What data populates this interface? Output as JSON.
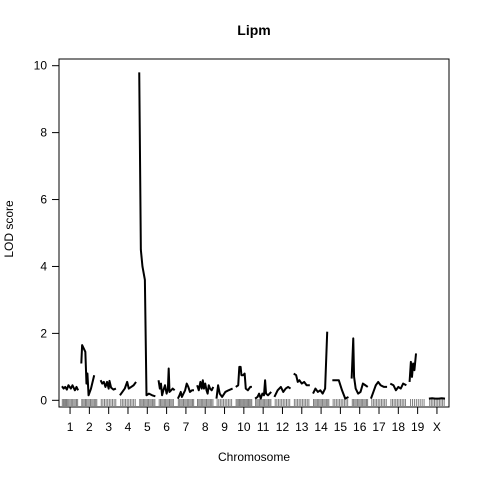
{
  "chart_data": {
    "type": "line",
    "title": "Lipm",
    "xlabel": "Chromosome",
    "ylabel": "LOD score",
    "ylim": [
      -0.2,
      10.2
    ],
    "yticks": [
      0,
      2,
      4,
      6,
      8,
      10
    ],
    "grid": false,
    "legend": "none",
    "line_color": "#000000",
    "rug_color": "#7f7f7f",
    "chromosomes": [
      {
        "label": "1",
        "xrange": [
          0,
          100
        ],
        "points": [
          [
            0,
            0.42
          ],
          [
            10,
            0.35
          ],
          [
            20,
            0.4
          ],
          [
            30,
            0.32
          ],
          [
            40,
            0.45
          ],
          [
            55,
            0.35
          ],
          [
            65,
            0.45
          ],
          [
            80,
            0.3
          ],
          [
            90,
            0.4
          ],
          [
            100,
            0.3
          ]
        ],
        "markers": [
          2,
          9,
          15,
          22,
          28,
          35,
          42,
          50,
          58,
          66,
          74,
          82,
          90,
          97
        ]
      },
      {
        "label": "2",
        "xrange": [
          0,
          100
        ],
        "points": [
          [
            0,
            1.1
          ],
          [
            5,
            1.65
          ],
          [
            15,
            1.55
          ],
          [
            25,
            1.45
          ],
          [
            32,
            0.5
          ],
          [
            38,
            0.8
          ],
          [
            45,
            0.15
          ],
          [
            60,
            0.35
          ],
          [
            80,
            0.75
          ]
        ],
        "markers": [
          3,
          10,
          18,
          26,
          33,
          41,
          49,
          57,
          65,
          73,
          81,
          89,
          96
        ]
      },
      {
        "label": "3",
        "xrange": [
          0,
          100
        ],
        "points": [
          [
            0,
            0.6
          ],
          [
            10,
            0.5
          ],
          [
            20,
            0.55
          ],
          [
            30,
            0.4
          ],
          [
            40,
            0.55
          ],
          [
            50,
            0.35
          ],
          [
            55,
            0.58
          ],
          [
            65,
            0.38
          ],
          [
            80,
            0.32
          ],
          [
            95,
            0.35
          ]
        ],
        "markers": [
          4,
          14,
          24,
          34,
          44,
          54,
          64,
          74,
          84,
          94
        ]
      },
      {
        "label": "4",
        "xrange": [
          0,
          100
        ],
        "points": [
          [
            0,
            0.15
          ],
          [
            15,
            0.25
          ],
          [
            30,
            0.35
          ],
          [
            45,
            0.55
          ],
          [
            55,
            0.35
          ],
          [
            70,
            0.4
          ],
          [
            85,
            0.45
          ],
          [
            100,
            0.55
          ]
        ],
        "markers": [
          5,
          15,
          25,
          35,
          45,
          55,
          65,
          75,
          85,
          95
        ]
      },
      {
        "label": "5",
        "xrange": [
          0,
          100
        ],
        "points": [
          [
            0,
            9.8
          ],
          [
            10,
            4.5
          ],
          [
            20,
            4.0
          ],
          [
            35,
            3.6
          ],
          [
            45,
            0.15
          ],
          [
            60,
            0.2
          ],
          [
            80,
            0.15
          ],
          [
            100,
            0.12
          ]
        ],
        "markers": [
          3,
          10,
          18,
          26,
          34,
          42,
          50,
          58,
          66,
          74,
          82,
          90,
          97
        ]
      },
      {
        "label": "6",
        "xrange": [
          0,
          100
        ],
        "points": [
          [
            0,
            0.6
          ],
          [
            8,
            0.35
          ],
          [
            15,
            0.5
          ],
          [
            22,
            0.15
          ],
          [
            30,
            0.3
          ],
          [
            40,
            0.45
          ],
          [
            50,
            0.2
          ],
          [
            58,
            0.35
          ],
          [
            63,
            0.95
          ],
          [
            68,
            0.25
          ],
          [
            78,
            0.3
          ],
          [
            88,
            0.35
          ],
          [
            100,
            0.3
          ]
        ],
        "markers": [
          4,
          12,
          20,
          28,
          36,
          44,
          52,
          60,
          68,
          76,
          84,
          92
        ]
      },
      {
        "label": "7",
        "xrange": [
          0,
          100
        ],
        "points": [
          [
            0,
            0.05
          ],
          [
            10,
            0.15
          ],
          [
            18,
            0.25
          ],
          [
            25,
            0.1
          ],
          [
            35,
            0.2
          ],
          [
            45,
            0.3
          ],
          [
            55,
            0.5
          ],
          [
            65,
            0.4
          ],
          [
            75,
            0.25
          ],
          [
            88,
            0.3
          ],
          [
            100,
            0.3
          ]
        ],
        "markers": [
          3,
          11,
          19,
          27,
          35,
          43,
          51,
          59,
          67,
          75,
          83,
          91,
          98
        ]
      },
      {
        "label": "8",
        "xrange": [
          0,
          100
        ],
        "points": [
          [
            0,
            0.45
          ],
          [
            10,
            0.3
          ],
          [
            20,
            0.55
          ],
          [
            28,
            0.35
          ],
          [
            35,
            0.6
          ],
          [
            42,
            0.35
          ],
          [
            50,
            0.5
          ],
          [
            58,
            0.3
          ],
          [
            65,
            0.2
          ],
          [
            72,
            0.45
          ],
          [
            80,
            0.35
          ],
          [
            90,
            0.3
          ],
          [
            100,
            0.4
          ]
        ],
        "markers": [
          2,
          10,
          18,
          26,
          34,
          42,
          50,
          58,
          66,
          74,
          82,
          90,
          98
        ]
      },
      {
        "label": "9",
        "xrange": [
          0,
          100
        ],
        "points": [
          [
            0,
            0.05
          ],
          [
            10,
            0.45
          ],
          [
            20,
            0.2
          ],
          [
            35,
            0.1
          ],
          [
            55,
            0.25
          ],
          [
            75,
            0.3
          ],
          [
            100,
            0.35
          ]
        ],
        "markers": [
          4,
          14,
          24,
          34,
          44,
          54,
          64,
          74,
          84,
          94
        ]
      },
      {
        "label": "10",
        "xrange": [
          0,
          100
        ],
        "points": [
          [
            0,
            0.4
          ],
          [
            15,
            0.45
          ],
          [
            22,
            1.0
          ],
          [
            30,
            1.0
          ],
          [
            35,
            0.75
          ],
          [
            45,
            0.75
          ],
          [
            55,
            0.8
          ],
          [
            62,
            0.35
          ],
          [
            75,
            0.3
          ],
          [
            90,
            0.4
          ],
          [
            100,
            0.4
          ]
        ],
        "markers": [
          2,
          9,
          16,
          23,
          30,
          37,
          44,
          51,
          58,
          65,
          72,
          79,
          86,
          93,
          99
        ]
      },
      {
        "label": "11",
        "xrange": [
          0,
          100
        ],
        "points": [
          [
            0,
            0.05
          ],
          [
            15,
            0.1
          ],
          [
            25,
            0.2
          ],
          [
            35,
            0.05
          ],
          [
            45,
            0.2
          ],
          [
            55,
            0.15
          ],
          [
            62,
            0.6
          ],
          [
            68,
            0.2
          ],
          [
            80,
            0.15
          ],
          [
            100,
            0.25
          ]
        ],
        "markers": [
          3,
          11,
          19,
          27,
          35,
          43,
          51,
          59,
          67,
          75,
          83,
          91,
          98
        ]
      },
      {
        "label": "12",
        "xrange": [
          0,
          100
        ],
        "points": [
          [
            0,
            0.1
          ],
          [
            20,
            0.3
          ],
          [
            40,
            0.4
          ],
          [
            55,
            0.25
          ],
          [
            70,
            0.35
          ],
          [
            85,
            0.4
          ],
          [
            100,
            0.35
          ]
        ],
        "markers": [
          5,
          15,
          25,
          35,
          45,
          55,
          65,
          75,
          85,
          95
        ]
      },
      {
        "label": "13",
        "xrange": [
          0,
          100
        ],
        "points": [
          [
            0,
            0.8
          ],
          [
            15,
            0.75
          ],
          [
            25,
            0.55
          ],
          [
            35,
            0.6
          ],
          [
            50,
            0.5
          ],
          [
            65,
            0.55
          ],
          [
            80,
            0.45
          ],
          [
            100,
            0.45
          ]
        ],
        "markers": [
          4,
          14,
          24,
          34,
          44,
          54,
          64,
          74,
          84,
          94
        ]
      },
      {
        "label": "14",
        "xrange": [
          0,
          100
        ],
        "points": [
          [
            0,
            0.2
          ],
          [
            15,
            0.35
          ],
          [
            30,
            0.25
          ],
          [
            45,
            0.3
          ],
          [
            60,
            0.2
          ],
          [
            75,
            0.35
          ],
          [
            88,
            2.05
          ]
        ],
        "markers": [
          3,
          11,
          19,
          27,
          35,
          43,
          51,
          59,
          67,
          75,
          83,
          91,
          98
        ]
      },
      {
        "label": "15",
        "xrange": [
          0,
          100
        ],
        "points": [
          [
            0,
            0.6
          ],
          [
            20,
            0.6
          ],
          [
            40,
            0.6
          ],
          [
            60,
            0.3
          ],
          [
            80,
            0.05
          ],
          [
            100,
            0.1
          ]
        ],
        "markers": [
          5,
          15,
          25,
          35,
          45,
          55,
          65,
          75,
          85,
          95
        ]
      },
      {
        "label": "16",
        "xrange": [
          0,
          100
        ],
        "points": [
          [
            0,
            0.65
          ],
          [
            10,
            1.85
          ],
          [
            15,
            0.7
          ],
          [
            25,
            0.35
          ],
          [
            40,
            0.2
          ],
          [
            55,
            0.25
          ],
          [
            70,
            0.5
          ],
          [
            85,
            0.45
          ],
          [
            100,
            0.4
          ]
        ],
        "markers": [
          4,
          12,
          20,
          28,
          36,
          44,
          52,
          60,
          68,
          76,
          84,
          92,
          99
        ]
      },
      {
        "label": "17",
        "xrange": [
          0,
          100
        ],
        "points": [
          [
            0,
            0.05
          ],
          [
            15,
            0.25
          ],
          [
            30,
            0.45
          ],
          [
            45,
            0.55
          ],
          [
            60,
            0.45
          ],
          [
            80,
            0.4
          ],
          [
            100,
            0.4
          ]
        ],
        "markers": [
          5,
          15,
          25,
          35,
          45,
          55,
          65,
          75,
          85,
          95
        ]
      },
      {
        "label": "18",
        "xrange": [
          0,
          100
        ],
        "points": [
          [
            0,
            0.5
          ],
          [
            20,
            0.45
          ],
          [
            35,
            0.3
          ],
          [
            50,
            0.4
          ],
          [
            65,
            0.35
          ],
          [
            80,
            0.5
          ],
          [
            100,
            0.45
          ]
        ],
        "markers": [
          4,
          14,
          24,
          34,
          44,
          54,
          64,
          74,
          84,
          94
        ]
      },
      {
        "label": "19",
        "xrange": [
          0,
          100
        ],
        "points": [
          [
            0,
            0.55
          ],
          [
            8,
            1.15
          ],
          [
            15,
            0.7
          ],
          [
            22,
            1.1
          ],
          [
            30,
            0.9
          ],
          [
            40,
            1.4
          ]
        ],
        "markers": [
          6,
          18,
          30,
          42,
          54,
          66,
          78,
          90
        ]
      },
      {
        "label": "X",
        "xrange": [
          0,
          100
        ],
        "points": [
          [
            0,
            0.05
          ],
          [
            20,
            0.06
          ],
          [
            40,
            0.05
          ],
          [
            60,
            0.05
          ],
          [
            80,
            0.06
          ],
          [
            100,
            0.05
          ]
        ],
        "markers": [
          5,
          15,
          25,
          35,
          45,
          55,
          65,
          75,
          85,
          95
        ]
      }
    ]
  }
}
